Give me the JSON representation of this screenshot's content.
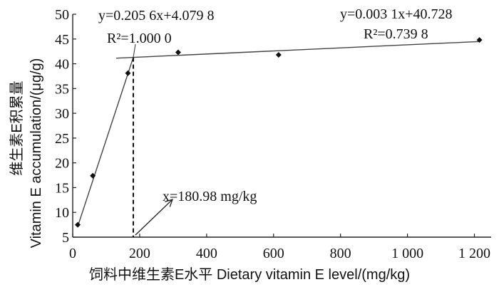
{
  "chart_data": {
    "type": "scatter",
    "xlabel": "饲料中维生素E水平  Dietary vitamin E level/(mg/kg)",
    "ylabel_cn": "维生素E积累量",
    "ylabel_en": "Vitamin E  accumulation/(μg/g)",
    "xlim": [
      0,
      1250
    ],
    "ylim": [
      5,
      50
    ],
    "x_ticks": [
      0,
      200,
      400,
      600,
      800,
      1000,
      1200
    ],
    "x_tick_labels": [
      "0",
      "200",
      "400",
      "600",
      "800",
      "1 000",
      "1 200"
    ],
    "y_ticks": [
      5,
      10,
      15,
      20,
      25,
      30,
      35,
      40,
      45,
      50
    ],
    "y_tick_labels": [
      "5",
      "10",
      "15",
      "20",
      "25",
      "30",
      "35",
      "40",
      "45",
      "50"
    ],
    "series": [
      {
        "points": [
          {
            "x": 15,
            "y": 7.5
          },
          {
            "x": 60,
            "y": 17.4
          },
          {
            "x": 165,
            "y": 38.1
          },
          {
            "x": 315,
            "y": 42.3
          },
          {
            "x": 615,
            "y": 41.8
          },
          {
            "x": 1215,
            "y": 44.8
          }
        ]
      }
    ],
    "fit_lines": [
      {
        "slope": 0.2056,
        "intercept": 4.0798,
        "x_from": 15,
        "x_to": 180.98,
        "equation": "y=0.205 6x+4.079 8",
        "r2": "R²=1.000 0"
      },
      {
        "slope": 0.0031,
        "intercept": 40.728,
        "x_from": 130,
        "x_to": 1215,
        "equation": "y=0.003 1x+40.728",
        "r2": "R²=0.739 8"
      }
    ],
    "breakpoint": {
      "x": 180.98,
      "label": "x=180.98 mg/kg"
    }
  }
}
